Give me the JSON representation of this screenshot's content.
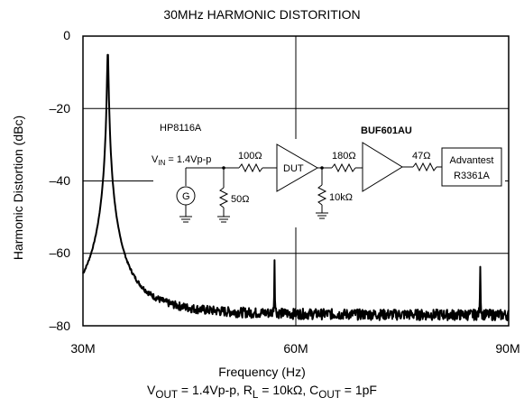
{
  "chart_data": {
    "type": "line",
    "title": "30MHz HARMONIC DISTORITION",
    "xlabel": "Frequency (Hz)",
    "ylabel": "Harmonic Distortion (dBc)",
    "xlim": [
      30,
      90
    ],
    "ylim": [
      -80,
      0
    ],
    "x_ticks": [
      "30M",
      "60M",
      "90M"
    ],
    "y_ticks": [
      "0",
      "–20",
      "–40",
      "–60",
      "–80"
    ],
    "grid": true,
    "noise_floor": -77,
    "peaks": [
      {
        "x": 33.5,
        "y": -4,
        "label": "fundamental"
      },
      {
        "x": 57.0,
        "y": -63.5,
        "label": "2nd harmonic"
      },
      {
        "x": 86.0,
        "y": -65.5,
        "label": "3rd harmonic"
      }
    ],
    "footnote": {
      "vout_prefix": "V",
      "vout_sub": "OUT",
      "vout_rest": " = 1.4Vp-p, R",
      "rl_sub": "L",
      "rl_rest": " = 10kΩ, C",
      "cout_sub": "OUT",
      "cout_rest": " = 1pF"
    }
  },
  "schematic": {
    "generator_label": "HP8116A",
    "vin_prefix": "V",
    "vin_sub": "IN",
    "vin_rest": " = 1.4Vp-p",
    "generator_symbol": "G",
    "r_in": "100Ω",
    "r_shunt": "50Ω",
    "dut_label": "DUT",
    "r_mid": "180Ω",
    "r_load": "10kΩ",
    "buffer_label": "BUF601AU",
    "r_out": "47Ω",
    "analyzer_line1": "Advantest",
    "analyzer_line2": "R3361A"
  }
}
